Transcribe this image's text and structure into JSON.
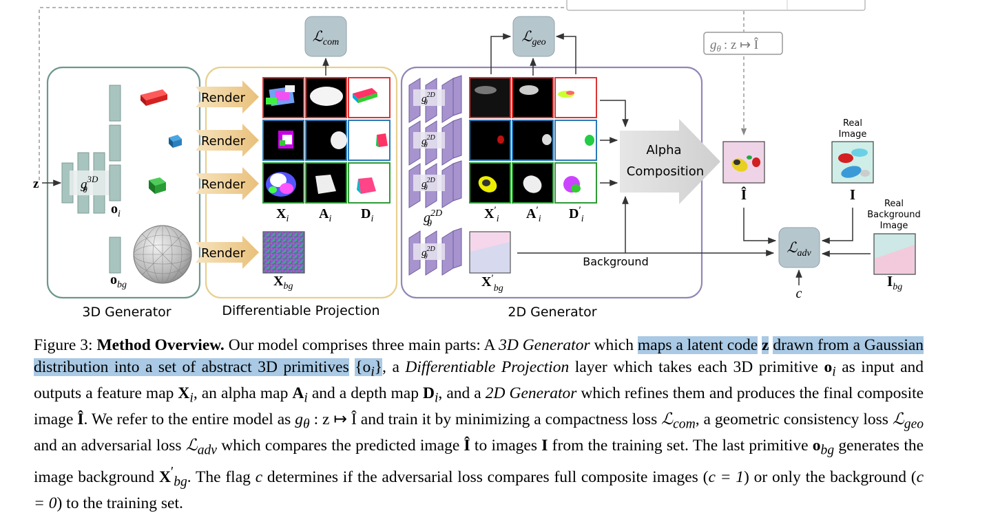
{
  "figure": {
    "panels": {
      "gen3d": "3D Generator",
      "proj": "Differentiable Projection",
      "gen2d": "2D Generator"
    },
    "render_label": "Render",
    "alpha_comp_line1": "Alpha",
    "alpha_comp_line2": "Composition",
    "background_label": "Background",
    "real_image_line1": "Real",
    "real_image_line2": "Image",
    "real_bg_line1": "Real",
    "real_bg_line2": "Background",
    "real_bg_line3": "Image",
    "math": {
      "z": "z",
      "g3d": "g",
      "g3d_sup": "3D",
      "g3d_sub": "θ",
      "g2d": "g",
      "g2d_sup": "2D",
      "g2d_sub": "θ",
      "o": "o",
      "o_sub": "i",
      "obg_sub": "bg",
      "X": "X",
      "A": "A",
      "D": "D",
      "prime": "′",
      "I": "I",
      "Ihat": "Î",
      "c": "c",
      "L": "ℒ",
      "com": "com",
      "geo": "geo",
      "adv": "adv",
      "map_g": "g",
      "map_rest": ": z ↦ Î"
    }
  },
  "caption": {
    "figure_label": "Figure 3:",
    "title": "Method Overview.",
    "text_1": "Our model comprises three main parts: A",
    "term_3d": "3D Generator",
    "text_2": "which",
    "hl_1": "maps a latent code",
    "hl_z": "z",
    "hl_2": "drawn from a Gaussian distribution into a set of abstract 3D primitives",
    "hl_set": "{o",
    "hl_set_sub": "i",
    "hl_set_end": "}",
    "text_3": ", a",
    "term_proj": "Differentiable Projection",
    "text_4": "layer which takes each 3D primitive",
    "text_5": "as input and outputs a feature map",
    "text_6": ", an alpha map",
    "text_7": "and a depth map",
    "text_8": ", and a",
    "term_2d": "2D Generator",
    "text_9": "which refines them and produces the final composite image",
    "text_10": ". We refer to the entire model as",
    "text_11": "and train it by minimizing a compactness loss",
    "text_12": ", a geometric consistency loss",
    "text_13": "and an adversarial loss",
    "text_14": "which compares the predicted image",
    "text_15": "to images",
    "text_16": "from the training set. The last primitive",
    "text_17": "generates the image background",
    "text_18": ". The flag",
    "text_19": "determines if the adversarial loss compares full composite images (",
    "eq_c1": "c = 1",
    "text_20": ") or only the background (",
    "eq_c0": "c = 0",
    "text_21": ") to the training set."
  }
}
